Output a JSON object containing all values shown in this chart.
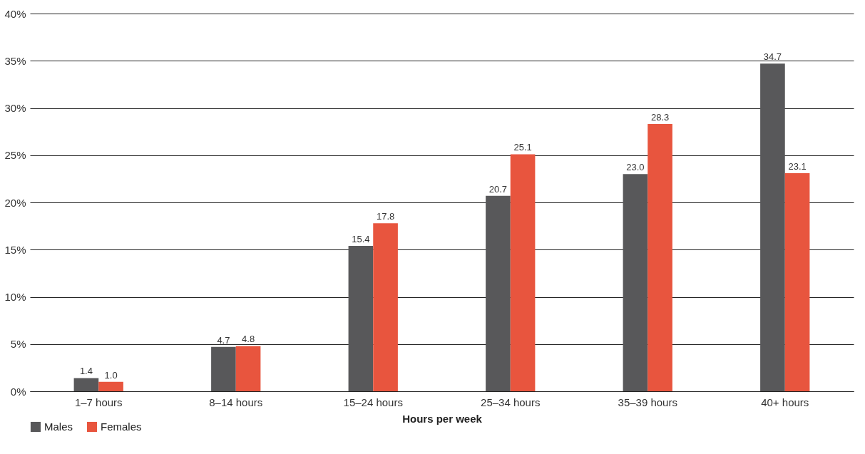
{
  "chart_data": {
    "type": "bar",
    "xlabel": "Hours per week",
    "categories": [
      "1–7 hours",
      "8–14 hours",
      "15–24 hours",
      "25–34 hours",
      "35–39 hours",
      "40+ hours"
    ],
    "series": [
      {
        "name": "Males",
        "color": "#58585a",
        "values": [
          1.4,
          4.7,
          15.4,
          20.7,
          23.0,
          34.7
        ],
        "value_labels": [
          "1.4",
          "4.7",
          "15.4",
          "20.7",
          "23.0",
          "34.7"
        ]
      },
      {
        "name": "Females",
        "color": "#e8553e",
        "values": [
          1.0,
          4.8,
          17.8,
          25.1,
          28.3,
          23.1
        ],
        "value_labels": [
          "1.0",
          "4.8",
          "17.8",
          "25.1",
          "28.3",
          "23.1"
        ]
      }
    ],
    "ylim": [
      0,
      40
    ],
    "yticks": [
      {
        "value": 0,
        "label": "0%"
      },
      {
        "value": 5,
        "label": "5%"
      },
      {
        "value": 10,
        "label": "10%"
      },
      {
        "value": 15,
        "label": "15%"
      },
      {
        "value": 20,
        "label": "20%"
      },
      {
        "value": 25,
        "label": "25%"
      },
      {
        "value": 30,
        "label": "30%"
      },
      {
        "value": 35,
        "label": "35%"
      },
      {
        "value": 40,
        "label": "40%"
      }
    ],
    "grid": "y",
    "legend": "bottom left"
  }
}
